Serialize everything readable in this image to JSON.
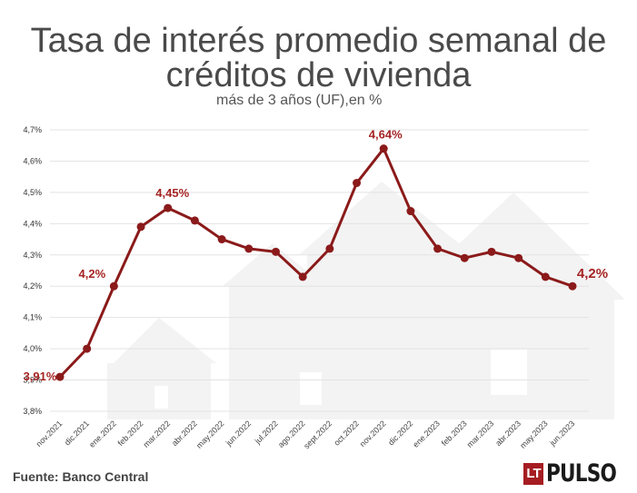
{
  "title_lines": [
    "Tasa de interés promedio semanal de",
    "créditos de vivienda"
  ],
  "subtitle": "más de 3 años (UF),en %",
  "source": "Fuente: Banco Central",
  "logo": {
    "lt": "LT",
    "name": "PULSO"
  },
  "colors": {
    "line": "#8b1a1a",
    "label": "#a52323",
    "grid": "#e3e3e3",
    "houses": "#f3f3f3"
  },
  "chart_data": {
    "type": "line",
    "title": "Tasa de interés promedio semanal de créditos de vivienda",
    "subtitle": "más de 3 años (UF),en %",
    "categories": [
      "nov.2021",
      "dic.2021",
      "ene.2022",
      "feb.2022",
      "mar.2022",
      "abr.2022",
      "may.2022",
      "jun.2022",
      "jul.2022",
      "ago.2022",
      "sept.2022",
      "oct.2022",
      "nov.2022",
      "dic.2022",
      "ene.2023",
      "feb.2023",
      "mar.2023",
      "abr.2023",
      "may.2023",
      "jun.2023"
    ],
    "values": [
      3.91,
      4.0,
      4.2,
      4.39,
      4.45,
      4.41,
      4.35,
      4.32,
      4.31,
      4.23,
      4.32,
      4.53,
      4.64,
      4.44,
      4.32,
      4.29,
      4.31,
      4.29,
      4.23,
      4.2
    ],
    "ylim": [
      3.8,
      4.7
    ],
    "yticks": [
      "3,8%",
      "3,9%",
      "4,0%",
      "4,1%",
      "4,2%",
      "4,3%",
      "4,4%",
      "4,5%",
      "4,6%",
      "4,7%"
    ],
    "annotations": [
      {
        "index": 0,
        "text": "3,91%"
      },
      {
        "index": 2,
        "text": "4,2%"
      },
      {
        "index": 4,
        "text": "4,45%"
      },
      {
        "index": 12,
        "text": "4,64%"
      },
      {
        "index": 19,
        "text": "4,2%"
      }
    ],
    "xlabel": "",
    "ylabel": "",
    "grid": true
  }
}
